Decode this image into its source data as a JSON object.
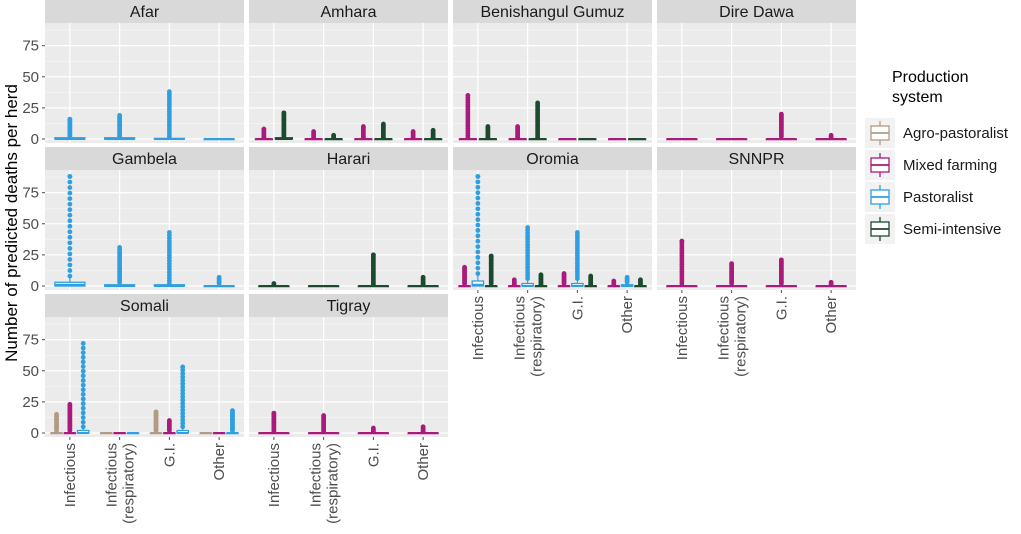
{
  "chart_data": {
    "type": "boxplot",
    "title": "",
    "ylabel": "Number of predicted deaths per herd",
    "xlabel": "",
    "ylim": [
      0,
      90
    ],
    "yticks": [
      0,
      25,
      50,
      75
    ],
    "categories": [
      "Infectious",
      "Infectious (respiratory)",
      "G.I.",
      "Other"
    ],
    "category_lines": [
      [
        "Infectious"
      ],
      [
        "Infectious",
        "(respiratory)"
      ],
      [
        "G.I."
      ],
      [
        "Other"
      ]
    ],
    "legend": {
      "title_lines": [
        "Production",
        "system"
      ],
      "placement": "right",
      "entries": [
        {
          "name": "Agro-pastoralist",
          "color": "#b29b85"
        },
        {
          "name": "Mixed farming",
          "color": "#aa1a7c"
        },
        {
          "name": "Pastoralist",
          "color": "#2f9fe0"
        },
        {
          "name": "Semi-intensive",
          "color": "#1b4a2f"
        }
      ]
    },
    "panels": [
      {
        "region": "Afar",
        "series": {
          "Pastoralist": [
            {
              "q1": 0,
              "median": 0,
              "q3": 1,
              "whisker_high": 1,
              "outlier_max": 16
            },
            {
              "q1": 0,
              "median": 0,
              "q3": 1,
              "whisker_high": 1,
              "outlier_max": 19
            },
            {
              "q1": 0,
              "median": 0,
              "q3": 0.5,
              "whisker_high": 1,
              "outlier_max": 38
            },
            {
              "q1": 0,
              "median": 0,
              "q3": 0,
              "whisker_high": 0,
              "outlier_max": 0
            }
          ]
        }
      },
      {
        "region": "Amhara",
        "series": {
          "Mixed farming": [
            {
              "q1": 0,
              "median": 0,
              "q3": 0,
              "whisker_high": 0,
              "outlier_max": 8
            },
            {
              "q1": 0,
              "median": 0,
              "q3": 0,
              "whisker_high": 0,
              "outlier_max": 6
            },
            {
              "q1": 0,
              "median": 0,
              "q3": 0,
              "whisker_high": 0,
              "outlier_max": 10
            },
            {
              "q1": 0,
              "median": 0,
              "q3": 0,
              "whisker_high": 0,
              "outlier_max": 6
            }
          ],
          "Semi-intensive": [
            {
              "q1": 0,
              "median": 0,
              "q3": 1,
              "whisker_high": 1,
              "outlier_max": 21
            },
            {
              "q1": 0,
              "median": 0,
              "q3": 0,
              "whisker_high": 0,
              "outlier_max": 3
            },
            {
              "q1": 0,
              "median": 0,
              "q3": 0,
              "whisker_high": 0,
              "outlier_max": 12
            },
            {
              "q1": 0,
              "median": 0,
              "q3": 0,
              "whisker_high": 0,
              "outlier_max": 7
            }
          ]
        }
      },
      {
        "region": "Benishangul Gumuz",
        "series": {
          "Mixed farming": [
            {
              "q1": 0,
              "median": 0,
              "q3": 0,
              "whisker_high": 0,
              "outlier_max": 35
            },
            {
              "q1": 0,
              "median": 0,
              "q3": 0,
              "whisker_high": 0,
              "outlier_max": 10
            },
            {
              "q1": 0,
              "median": 0,
              "q3": 0,
              "whisker_high": 0,
              "outlier_max": 0
            },
            {
              "q1": 0,
              "median": 0,
              "q3": 0,
              "whisker_high": 0,
              "outlier_max": 0
            }
          ],
          "Semi-intensive": [
            {
              "q1": 0,
              "median": 0,
              "q3": 0,
              "whisker_high": 0,
              "outlier_max": 10
            },
            {
              "q1": 0,
              "median": 0,
              "q3": 0,
              "whisker_high": 0,
              "outlier_max": 29
            },
            {
              "q1": 0,
              "median": 0,
              "q3": 0,
              "whisker_high": 0,
              "outlier_max": 0
            },
            {
              "q1": 0,
              "median": 0,
              "q3": 0,
              "whisker_high": 0,
              "outlier_max": 0
            }
          ]
        }
      },
      {
        "region": "Dire Dawa",
        "series": {
          "Mixed farming": [
            {
              "q1": 0,
              "median": 0,
              "q3": 0,
              "whisker_high": 0,
              "outlier_max": 0
            },
            {
              "q1": 0,
              "median": 0,
              "q3": 0,
              "whisker_high": 0,
              "outlier_max": 0
            },
            {
              "q1": 0,
              "median": 0,
              "q3": 0,
              "whisker_high": 1,
              "outlier_max": 20
            },
            {
              "q1": 0,
              "median": 0,
              "q3": 0,
              "whisker_high": 0,
              "outlier_max": 3
            }
          ]
        }
      },
      {
        "region": "Gambela",
        "series": {
          "Pastoralist": [
            {
              "q1": 0,
              "median": 1,
              "q3": 3,
              "whisker_high": 7,
              "outlier_max": 88
            },
            {
              "q1": 0,
              "median": 0,
              "q3": 1,
              "whisker_high": 2,
              "outlier_max": 31
            },
            {
              "q1": 0,
              "median": 0,
              "q3": 1,
              "whisker_high": 1,
              "outlier_max": 43
            },
            {
              "q1": 0,
              "median": 0,
              "q3": 0,
              "whisker_high": 1,
              "outlier_max": 7
            }
          ]
        }
      },
      {
        "region": "Harari",
        "series": {
          "Semi-intensive": [
            {
              "q1": 0,
              "median": 0,
              "q3": 0,
              "whisker_high": 0,
              "outlier_max": 2
            },
            {
              "q1": 0,
              "median": 0,
              "q3": 0,
              "whisker_high": 0,
              "outlier_max": 0
            },
            {
              "q1": 0,
              "median": 0,
              "q3": 0,
              "whisker_high": 0,
              "outlier_max": 25
            },
            {
              "q1": 0,
              "median": 0,
              "q3": 0,
              "whisker_high": 0,
              "outlier_max": 7
            }
          ]
        }
      },
      {
        "region": "Oromia",
        "series": {
          "Mixed farming": [
            {
              "q1": 0,
              "median": 0,
              "q3": 0,
              "whisker_high": 1,
              "outlier_max": 15
            },
            {
              "q1": 0,
              "median": 0,
              "q3": 0,
              "whisker_high": 0,
              "outlier_max": 5
            },
            {
              "q1": 0,
              "median": 0,
              "q3": 0,
              "whisker_high": 1,
              "outlier_max": 10
            },
            {
              "q1": 0,
              "median": 0,
              "q3": 0,
              "whisker_high": 0,
              "outlier_max": 4
            }
          ],
          "Pastoralist": [
            {
              "q1": 0,
              "median": 1,
              "q3": 4,
              "whisker_high": 9,
              "outlier_max": 88
            },
            {
              "q1": 0,
              "median": 0,
              "q3": 2,
              "whisker_high": 5,
              "outlier_max": 47
            },
            {
              "q1": 0,
              "median": 0,
              "q3": 2,
              "whisker_high": 5,
              "outlier_max": 43
            },
            {
              "q1": 0,
              "median": 0,
              "q3": 1,
              "whisker_high": 2,
              "outlier_max": 7
            }
          ],
          "Semi-intensive": [
            {
              "q1": 0,
              "median": 0,
              "q3": 0,
              "whisker_high": 1,
              "outlier_max": 24
            },
            {
              "q1": 0,
              "median": 0,
              "q3": 0,
              "whisker_high": 0,
              "outlier_max": 9
            },
            {
              "q1": 0,
              "median": 0,
              "q3": 0,
              "whisker_high": 0,
              "outlier_max": 8
            },
            {
              "q1": 0,
              "median": 0,
              "q3": 0,
              "whisker_high": 0,
              "outlier_max": 5
            }
          ]
        }
      },
      {
        "region": "SNNPR",
        "series": {
          "Mixed farming": [
            {
              "q1": 0,
              "median": 0,
              "q3": 0,
              "whisker_high": 1,
              "outlier_max": 36
            },
            {
              "q1": 0,
              "median": 0,
              "q3": 0,
              "whisker_high": 1,
              "outlier_max": 18
            },
            {
              "q1": 0,
              "median": 0,
              "q3": 0,
              "whisker_high": 1,
              "outlier_max": 21
            },
            {
              "q1": 0,
              "median": 0,
              "q3": 0,
              "whisker_high": 0,
              "outlier_max": 3
            }
          ]
        }
      },
      {
        "region": "Somali",
        "series": {
          "Agro-pastoralist": [
            {
              "q1": 0,
              "median": 0,
              "q3": 0,
              "whisker_high": 1,
              "outlier_max": 15
            },
            {
              "q1": 0,
              "median": 0,
              "q3": 0,
              "whisker_high": 0,
              "outlier_max": 0
            },
            {
              "q1": 0,
              "median": 0,
              "q3": 0,
              "whisker_high": 1,
              "outlier_max": 17
            },
            {
              "q1": 0,
              "median": 0,
              "q3": 0,
              "whisker_high": 0,
              "outlier_max": 0
            }
          ],
          "Mixed farming": [
            {
              "q1": 0,
              "median": 0,
              "q3": 0,
              "whisker_high": 1,
              "outlier_max": 23
            },
            {
              "q1": 0,
              "median": 0,
              "q3": 0,
              "whisker_high": 0,
              "outlier_max": 0
            },
            {
              "q1": 0,
              "median": 0,
              "q3": 0,
              "whisker_high": 1,
              "outlier_max": 10
            },
            {
              "q1": 0,
              "median": 0,
              "q3": 0,
              "whisker_high": 0,
              "outlier_max": 0
            }
          ],
          "Pastoralist": [
            {
              "q1": 0,
              "median": 0,
              "q3": 2,
              "whisker_high": 4,
              "outlier_max": 72
            },
            {
              "q1": 0,
              "median": 0,
              "q3": 0,
              "whisker_high": 0,
              "outlier_max": 0
            },
            {
              "q1": 0,
              "median": 0,
              "q3": 2,
              "whisker_high": 4,
              "outlier_max": 53
            },
            {
              "q1": 0,
              "median": 0,
              "q3": 0,
              "whisker_high": 1,
              "outlier_max": 18
            }
          ]
        }
      },
      {
        "region": "Tigray",
        "series": {
          "Mixed farming": [
            {
              "q1": 0,
              "median": 0,
              "q3": 0,
              "whisker_high": 0,
              "outlier_max": 16
            },
            {
              "q1": 0,
              "median": 0,
              "q3": 0,
              "whisker_high": 0,
              "outlier_max": 14
            },
            {
              "q1": 0,
              "median": 0,
              "q3": 0,
              "whisker_high": 0,
              "outlier_max": 4
            },
            {
              "q1": 0,
              "median": 0,
              "q3": 0,
              "whisker_high": 0,
              "outlier_max": 5
            }
          ]
        }
      }
    ]
  }
}
